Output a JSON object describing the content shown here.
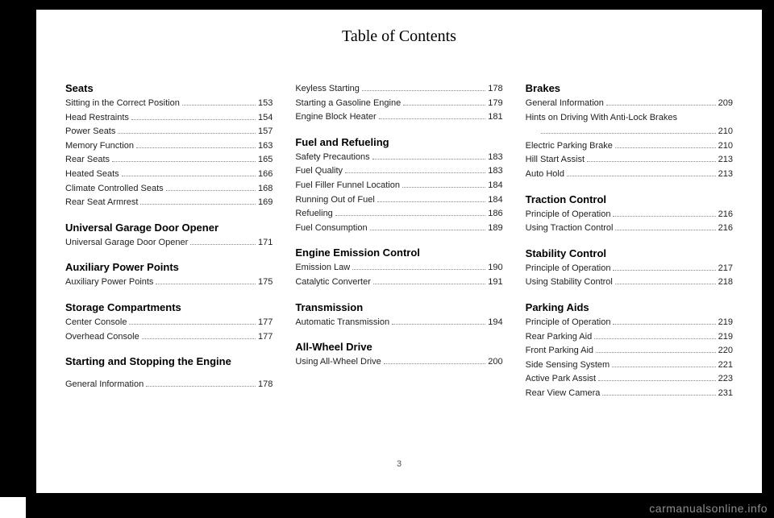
{
  "page_title": "Table of Contents",
  "page_number": "3",
  "watermark": "carmanualsonline.info",
  "columns": [
    [
      {
        "type": "heading",
        "text": "Seats"
      },
      {
        "type": "item",
        "label": "Sitting in the Correct Position",
        "page": "153"
      },
      {
        "type": "item",
        "label": "Head Restraints",
        "page": "154"
      },
      {
        "type": "item",
        "label": "Power Seats",
        "page": "157"
      },
      {
        "type": "item",
        "label": "Memory Function",
        "page": "163"
      },
      {
        "type": "item",
        "label": "Rear Seats",
        "page": "165"
      },
      {
        "type": "item",
        "label": "Heated Seats",
        "page": "166"
      },
      {
        "type": "item",
        "label": "Climate Controlled Seats",
        "page": "168"
      },
      {
        "type": "item",
        "label": "Rear Seat Armrest",
        "page": "169"
      },
      {
        "type": "heading",
        "text": "Universal Garage Door Opener"
      },
      {
        "type": "item",
        "label": "Universal Garage Door Opener",
        "page": "171"
      },
      {
        "type": "heading",
        "text": "Auxiliary Power Points"
      },
      {
        "type": "item",
        "label": "Auxiliary Power Points",
        "page": "175"
      },
      {
        "type": "heading",
        "text": "Storage Compartments"
      },
      {
        "type": "item",
        "label": "Center Console",
        "page": "177"
      },
      {
        "type": "item",
        "label": "Overhead Console",
        "page": "177"
      },
      {
        "type": "heading",
        "text": "Starting and Stopping the Engine"
      },
      {
        "type": "spacer"
      },
      {
        "type": "item",
        "label": "General Information",
        "page": "178"
      }
    ],
    [
      {
        "type": "item",
        "label": "Keyless Starting",
        "page": "178"
      },
      {
        "type": "item",
        "label": "Starting a Gasoline Engine",
        "page": "179"
      },
      {
        "type": "item",
        "label": "Engine Block Heater",
        "page": "181"
      },
      {
        "type": "heading",
        "text": "Fuel and Refueling"
      },
      {
        "type": "item",
        "label": "Safety Precautions",
        "page": "183"
      },
      {
        "type": "item",
        "label": "Fuel Quality",
        "page": "183"
      },
      {
        "type": "item",
        "label": "Fuel Filler Funnel Location",
        "page": "184"
      },
      {
        "type": "item",
        "label": "Running Out of Fuel",
        "page": "184"
      },
      {
        "type": "item",
        "label": "Refueling",
        "page": "186"
      },
      {
        "type": "item",
        "label": "Fuel Consumption",
        "page": "189"
      },
      {
        "type": "heading",
        "text": "Engine Emission Control"
      },
      {
        "type": "item",
        "label": "Emission Law",
        "page": "190"
      },
      {
        "type": "item",
        "label": "Catalytic Converter",
        "page": "191"
      },
      {
        "type": "heading",
        "text": "Transmission"
      },
      {
        "type": "item",
        "label": "Automatic Transmission",
        "page": "194"
      },
      {
        "type": "heading",
        "text": "All-Wheel Drive"
      },
      {
        "type": "item",
        "label": "Using All-Wheel Drive",
        "page": "200"
      }
    ],
    [
      {
        "type": "heading",
        "text": "Brakes"
      },
      {
        "type": "item",
        "label": "General Information",
        "page": "209"
      },
      {
        "type": "wrapitem",
        "label": "Hints on Driving With Anti-Lock Brakes",
        "page": "210"
      },
      {
        "type": "item",
        "label": "Electric Parking Brake",
        "page": "210"
      },
      {
        "type": "item",
        "label": "Hill Start Assist",
        "page": "213"
      },
      {
        "type": "item",
        "label": "Auto Hold",
        "page": "213"
      },
      {
        "type": "heading",
        "text": "Traction Control"
      },
      {
        "type": "item",
        "label": "Principle of Operation",
        "page": "216"
      },
      {
        "type": "item",
        "label": "Using Traction Control",
        "page": "216"
      },
      {
        "type": "heading",
        "text": "Stability Control"
      },
      {
        "type": "item",
        "label": "Principle of Operation",
        "page": "217"
      },
      {
        "type": "item",
        "label": "Using Stability Control",
        "page": "218"
      },
      {
        "type": "heading",
        "text": "Parking Aids"
      },
      {
        "type": "item",
        "label": "Principle of Operation",
        "page": "219"
      },
      {
        "type": "item",
        "label": "Rear Parking Aid",
        "page": "219"
      },
      {
        "type": "item",
        "label": "Front Parking Aid",
        "page": "220"
      },
      {
        "type": "item",
        "label": "Side Sensing System",
        "page": "221"
      },
      {
        "type": "item",
        "label": "Active Park Assist",
        "page": "223"
      },
      {
        "type": "item",
        "label": "Rear View Camera",
        "page": "231"
      }
    ]
  ]
}
